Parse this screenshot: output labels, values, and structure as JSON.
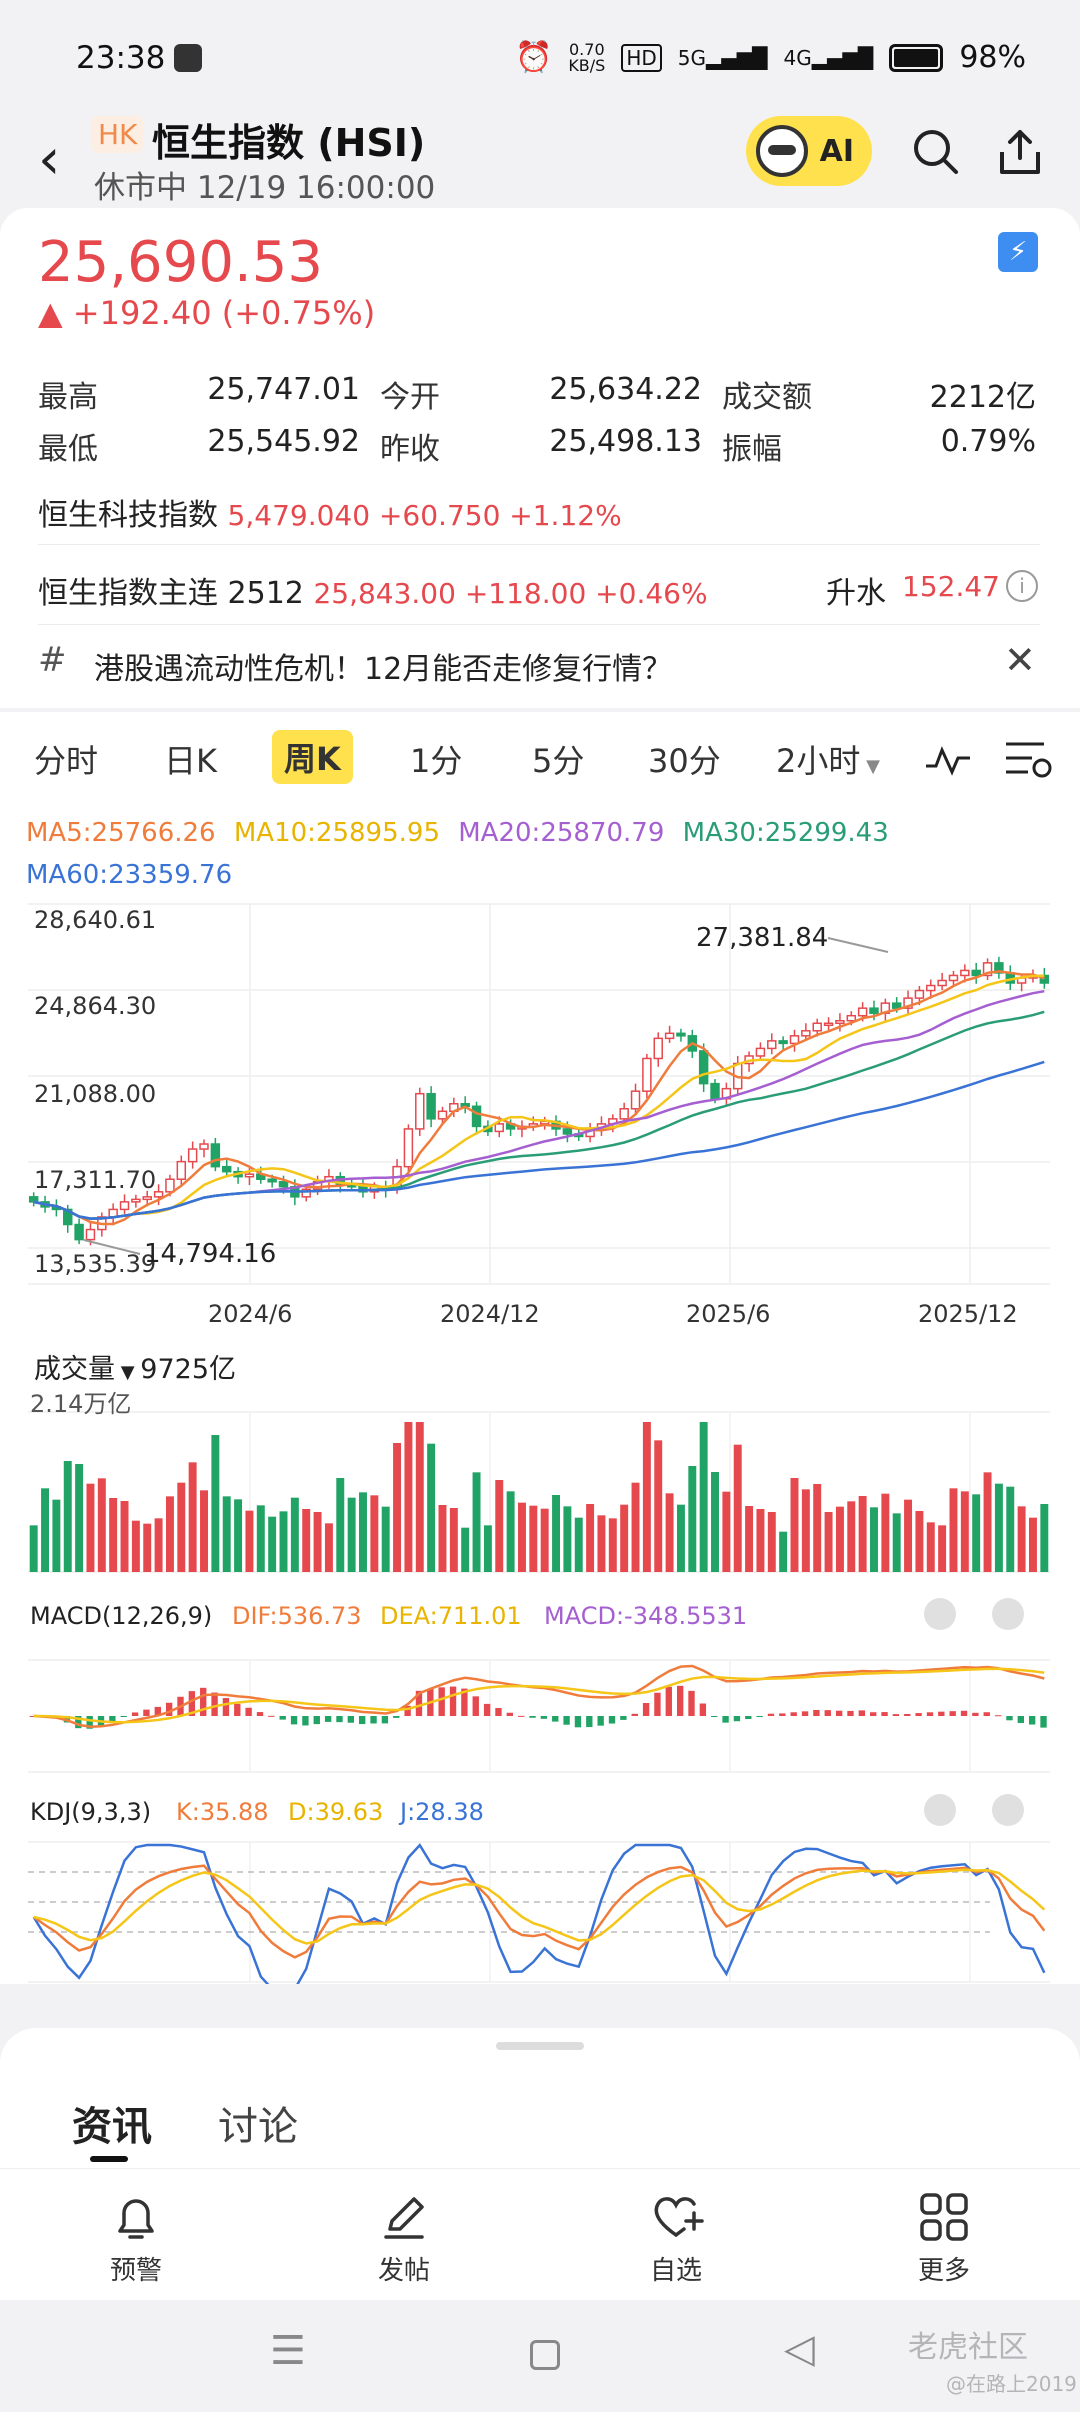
{
  "status": {
    "time": "23:38",
    "speed": "0.70",
    "speed_unit": "KB/S",
    "hd": "HD",
    "net1": "5G",
    "net2": "4G",
    "battery": "98%"
  },
  "header": {
    "market": "HK",
    "title": "恒生指数 (HSI)",
    "subtitle": "休市中 12/19 16:00:00",
    "ai_label": "AI"
  },
  "quote": {
    "price": "25,690.53",
    "change": "▲ +192.40 (+0.75%)",
    "stats": [
      {
        "label": "最高",
        "value": "25,747.01"
      },
      {
        "label": "今开",
        "value": "25,634.22"
      },
      {
        "label": "成交额",
        "value": "2212亿"
      },
      {
        "label": "最低",
        "value": "25,545.92"
      },
      {
        "label": "昨收",
        "value": "25,498.13"
      },
      {
        "label": "振幅",
        "value": "0.79%"
      }
    ],
    "tech": {
      "name": "恒生科技指数",
      "value": "5,479.040 +60.750 +1.12%"
    },
    "future": {
      "name": "恒生指数主连 2512",
      "value": "25,843.00 +118.00 +0.46%",
      "basis_label": "升水",
      "basis_value": "152.47"
    },
    "news": "港股遇流动性危机！12月能否走修复行情？"
  },
  "tabs": [
    "分时",
    "日K",
    "周K",
    "1分",
    "5分",
    "30分",
    "2小时"
  ],
  "ma": {
    "ma5": "MA5:25766.26",
    "ma10": "MA10:25895.95",
    "ma20": "MA20:25870.79",
    "ma30": "MA30:25299.43",
    "ma60": "MA60:23359.76"
  },
  "colors": {
    "up": "#e5484d",
    "down": "#21a366",
    "ma5": "#f07c3c",
    "ma10": "#f5c518",
    "ma20": "#a55fd1",
    "ma30": "#2a9d78",
    "ma60": "#3a73d6"
  },
  "chart_data": {
    "type": "candlestick",
    "y_ticks": [
      "28,640.61",
      "24,864.30",
      "21,088.00",
      "17,311.70",
      "13,535.39"
    ],
    "x_ticks": [
      "2024/6",
      "2024/12",
      "2025/6",
      "2025/12"
    ],
    "annotations": {
      "high": "27,381.84",
      "low": "14,794.16"
    },
    "closes": [
      16800,
      16600,
      16500,
      15900,
      15300,
      15700,
      16200,
      16500,
      16800,
      16900,
      17000,
      17200,
      17700,
      18400,
      18900,
      19100,
      18200,
      18000,
      17800,
      17900,
      17700,
      17600,
      17400,
      17000,
      17300,
      17600,
      17800,
      17500,
      17400,
      17200,
      17400,
      17300,
      18200,
      19700,
      21100,
      20100,
      20400,
      20700,
      20600,
      19800,
      19600,
      19900,
      19700,
      19800,
      19900,
      20000,
      19700,
      19500,
      19400,
      19700,
      19900,
      20100,
      20500,
      21200,
      22500,
      23300,
      23500,
      23400,
      22800,
      21500,
      20900,
      21300,
      22300,
      22600,
      22900,
      23200,
      23100,
      23400,
      23600,
      23900,
      23900,
      24000,
      24200,
      24500,
      24300,
      24700,
      24500,
      24900,
      25200,
      25400,
      25600,
      25800,
      26000,
      25800,
      26300,
      25900,
      25500,
      25700,
      25800,
      25500
    ],
    "volume": {
      "label": "成交量",
      "value": "9725亿",
      "axis_max": "2.14万亿"
    },
    "macd": {
      "title": "MACD(12,26,9)",
      "dif": "DIF:536.73",
      "dea": "DEA:711.01",
      "macd": "MACD:-348.5531"
    },
    "kdj": {
      "title": "KDJ(9,3,3)",
      "k": "K:35.88",
      "d": "D:39.63",
      "j": "J:28.38"
    }
  },
  "sheet_tabs": [
    "资讯",
    "讨论"
  ],
  "nav": [
    "预警",
    "发帖",
    "自选",
    "更多"
  ],
  "watermark": "老虎社区",
  "watermark_user": "@在路上2019"
}
